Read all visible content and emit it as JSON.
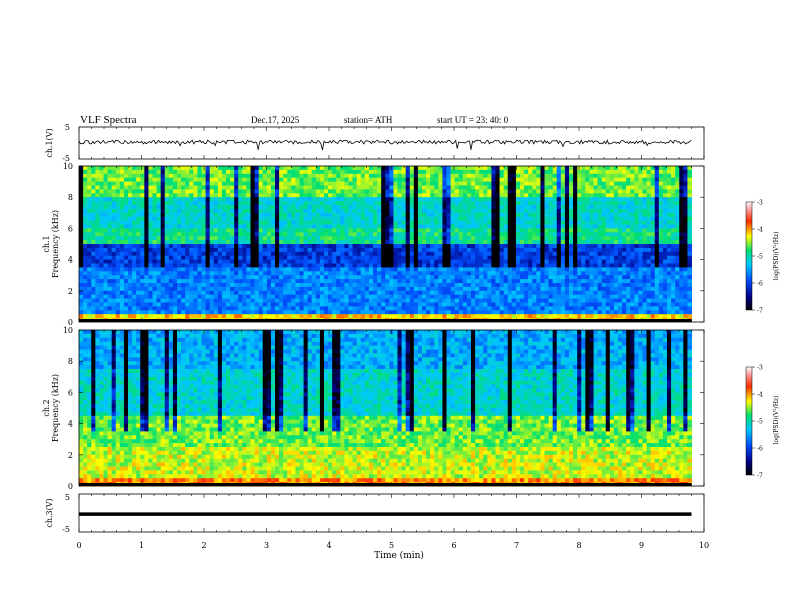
{
  "header": {
    "title": "VLF  Spectra",
    "date": "Dec.17, 2025",
    "station": "station= ATH",
    "start": "start  UT  =   23: 40: 0"
  },
  "chart_data": [
    {
      "type": "line",
      "ylabel": "ch.1(V)",
      "ylim": [
        -5,
        5
      ],
      "y_ticks": [
        "5",
        "-5"
      ],
      "description_values": "waveform fluctuating around ~0.3 V with spikes to about -2 V",
      "series": [
        {
          "x": [
            0,
            9.8
          ],
          "y": [
            0.3,
            0.3
          ]
        }
      ]
    },
    {
      "type": "heatmap",
      "ylabel_top": "ch.1",
      "ylabel": "Frequency  (kHz)",
      "ylim": [
        0,
        10
      ],
      "y_ticks": [
        "0",
        "2",
        "4",
        "6",
        "8",
        "10"
      ],
      "colorbar": {
        "label": "log(PSD)(V²/Hz)",
        "range": [
          -7,
          -3
        ],
        "ticks": [
          "-3",
          "-4",
          "-5",
          "-6",
          "-7"
        ]
      }
    },
    {
      "type": "heatmap",
      "ylabel_top": "ch.2",
      "ylabel": "Frequency  (kHz)",
      "ylim": [
        0,
        10
      ],
      "y_ticks": [
        "0",
        "2",
        "4",
        "6",
        "8",
        "10"
      ],
      "colorbar": {
        "label": "log(PSD)(V²/Hz)",
        "range": [
          -7,
          -3
        ],
        "ticks": [
          "-3",
          "-4",
          "-5",
          "-6",
          "-7"
        ]
      }
    },
    {
      "type": "line",
      "ylabel": "ch.3(V)",
      "ylim": [
        -5,
        5
      ],
      "y_ticks": [
        "5",
        "-5"
      ],
      "series": [
        {
          "x": [
            0,
            9.8
          ],
          "y": [
            -0.3,
            -0.3
          ]
        }
      ]
    }
  ],
  "x_axis": {
    "label": "Time  (min)",
    "xlim": [
      0,
      10
    ],
    "ticks": [
      "0",
      "1",
      "2",
      "3",
      "4",
      "5",
      "6",
      "7",
      "8",
      "9",
      "10"
    ],
    "data_end": 9.8
  }
}
